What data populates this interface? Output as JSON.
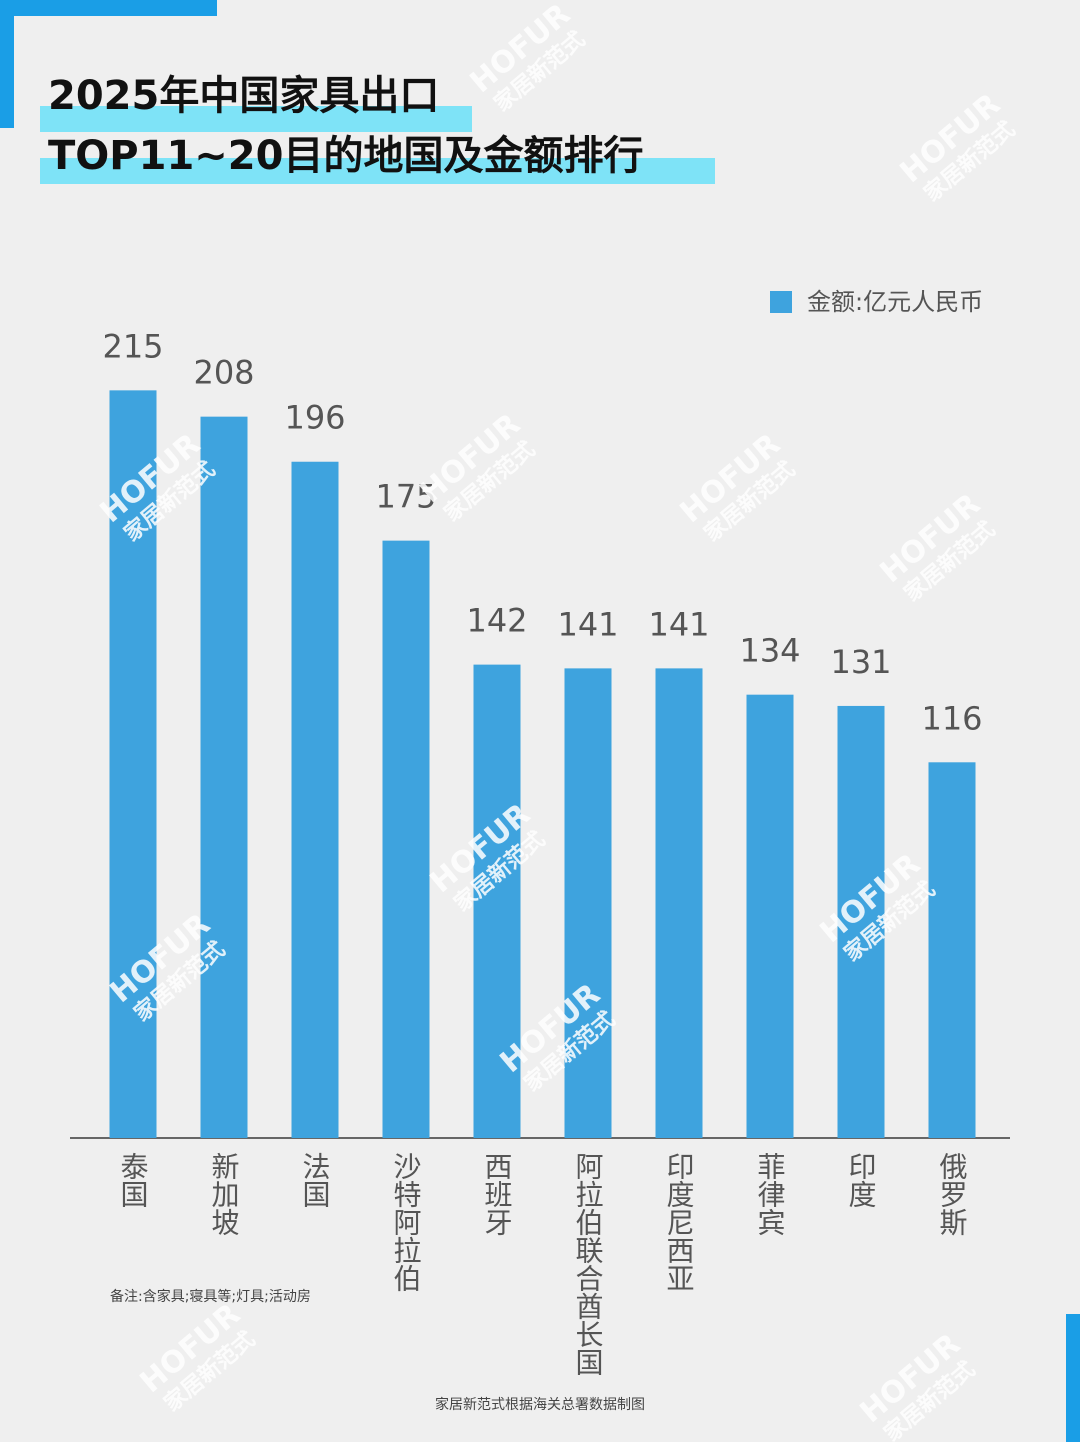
{
  "chart_data": {
    "type": "bar",
    "title": "2025年中国家具出口",
    "subtitle": "TOP11~20目的地国及金额排行",
    "categories": [
      "泰国",
      "新加坡",
      "法国",
      "沙特阿拉伯",
      "西班牙",
      "阿拉伯联合酋长国",
      "印度尼西亚",
      "菲律宾",
      "印度",
      "俄罗斯"
    ],
    "series": [
      {
        "name": "金额:亿元人民币",
        "color": "#3ea3de",
        "values": [
          215,
          208,
          196,
          175,
          142,
          141,
          141,
          134,
          131,
          116
        ]
      }
    ],
    "ylim": [
      16,
      230
    ],
    "legend": "top-right",
    "note": "备注:含家具;寝具等;灯具;活动房",
    "source": "家居新范式根据海关总署数据制图",
    "watermark": [
      "HOFUR",
      "家居新范式"
    ]
  }
}
